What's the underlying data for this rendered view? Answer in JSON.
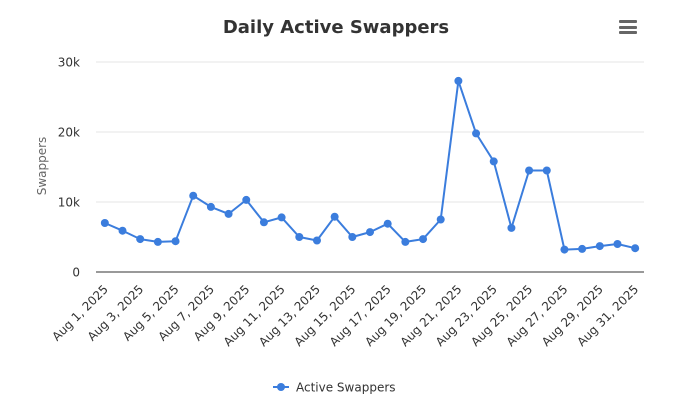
{
  "menu": {
    "icon": "hamburger-menu-icon"
  },
  "colors": {
    "series": "#3b7ddd",
    "grid": "#e6e6e6",
    "axis": "#333333",
    "tick_label": "#333333",
    "title": "#333333",
    "axis_title": "#666666"
  },
  "chart_data": {
    "type": "line",
    "title": "Daily Active Swappers",
    "xlabel": "",
    "ylabel": "Swappers",
    "ylim": [
      0,
      30000
    ],
    "yticks": [
      {
        "value": 0,
        "label": "0"
      },
      {
        "value": 10000,
        "label": "10k"
      },
      {
        "value": 20000,
        "label": "20k"
      },
      {
        "value": 30000,
        "label": "30k"
      }
    ],
    "grid": true,
    "legend_position": "bottom",
    "categories": [
      "Aug 1, 2025",
      "Aug 2, 2025",
      "Aug 3, 2025",
      "Aug 4, 2025",
      "Aug 5, 2025",
      "Aug 6, 2025",
      "Aug 7, 2025",
      "Aug 8, 2025",
      "Aug 9, 2025",
      "Aug 10, 2025",
      "Aug 11, 2025",
      "Aug 12, 2025",
      "Aug 13, 2025",
      "Aug 14, 2025",
      "Aug 15, 2025",
      "Aug 16, 2025",
      "Aug 17, 2025",
      "Aug 18, 2025",
      "Aug 19, 2025",
      "Aug 20, 2025",
      "Aug 21, 2025",
      "Aug 22, 2025",
      "Aug 23, 2025",
      "Aug 24, 2025",
      "Aug 25, 2025",
      "Aug 26, 2025",
      "Aug 27, 2025",
      "Aug 28, 2025",
      "Aug 29, 2025",
      "Aug 30, 2025",
      "Aug 31, 2025"
    ],
    "tick_labels_shown": [
      "Aug 1, 2025",
      "Aug 3, 2025",
      "Aug 5, 2025",
      "Aug 7, 2025",
      "Aug 9, 2025",
      "Aug 11, 2025",
      "Aug 13, 2025",
      "Aug 15, 2025",
      "Aug 17, 2025",
      "Aug 19, 2025",
      "Aug 21, 2025",
      "Aug 23, 2025",
      "Aug 25, 2025",
      "Aug 27, 2025",
      "Aug 29, 2025",
      "Aug 31, 2025"
    ],
    "series": [
      {
        "name": "Active Swappers",
        "values": [
          7000,
          5900,
          4700,
          4300,
          4400,
          10900,
          9300,
          8300,
          10300,
          7100,
          7800,
          5000,
          4500,
          7900,
          5000,
          5700,
          6900,
          4300,
          4700,
          7500,
          27300,
          19800,
          15800,
          6300,
          14500,
          14500,
          3200,
          3300,
          3700,
          4000,
          3400
        ]
      }
    ]
  }
}
